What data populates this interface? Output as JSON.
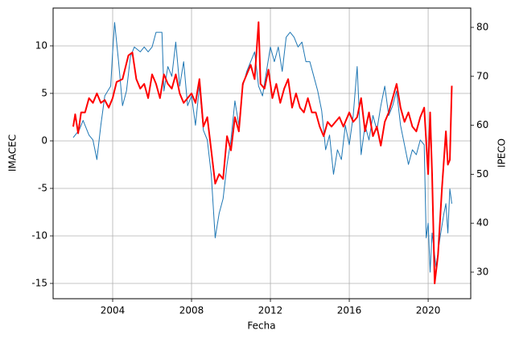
{
  "chart_data": {
    "type": "line",
    "xlabel": "Fecha",
    "ylabel": "IMACEC",
    "y2label": "IPECO",
    "xlim": [
      2000.98,
      2022.16
    ],
    "xticks": [
      2004,
      2008,
      2012,
      2016,
      2020
    ],
    "ylim": [
      -16.61,
      13.98
    ],
    "yticks": [
      -15,
      -10,
      -5,
      0,
      5,
      10
    ],
    "y2lim": [
      24.57,
      83.95
    ],
    "y2ticks": [
      30,
      40,
      50,
      60,
      70,
      80
    ],
    "grid": true,
    "series": [
      {
        "name": "IMACEC",
        "color": "#ff0000",
        "x": [
          2002.0,
          2002.1,
          2002.25,
          2002.4,
          2002.6,
          2002.8,
          2003.0,
          2003.2,
          2003.4,
          2003.6,
          2003.8,
          2004.0,
          2004.2,
          2004.5,
          2004.8,
          2005.0,
          2005.2,
          2005.4,
          2005.6,
          2005.8,
          2006.0,
          2006.2,
          2006.4,
          2006.6,
          2006.8,
          2007.0,
          2007.2,
          2007.4,
          2007.6,
          2007.8,
          2008.0,
          2008.2,
          2008.4,
          2008.6,
          2008.8,
          2009.0,
          2009.2,
          2009.4,
          2009.6,
          2009.8,
          2010.0,
          2010.2,
          2010.4,
          2010.6,
          2010.8,
          2011.0,
          2011.2,
          2011.4,
          2011.5,
          2011.7,
          2011.9,
          2012.1,
          2012.3,
          2012.5,
          2012.7,
          2012.9,
          2013.1,
          2013.3,
          2013.5,
          2013.7,
          2013.9,
          2014.1,
          2014.3,
          2014.5,
          2014.7,
          2014.9,
          2015.1,
          2015.3,
          2015.5,
          2015.7,
          2016.0,
          2016.2,
          2016.4,
          2016.6,
          2016.8,
          2017.0,
          2017.2,
          2017.4,
          2017.6,
          2017.8,
          2018.0,
          2018.2,
          2018.4,
          2018.6,
          2018.8,
          2019.0,
          2019.2,
          2019.4,
          2019.6,
          2019.8,
          2020.0,
          2020.1,
          2020.2,
          2020.33,
          2020.5,
          2020.7,
          2020.9,
          2021.0,
          2021.1,
          2021.2
        ],
        "values": [
          1.5,
          2.8,
          0.8,
          3,
          3,
          4.5,
          4,
          5,
          4,
          4.3,
          3.5,
          4.5,
          6.2,
          6.5,
          9,
          9.3,
          6.5,
          5.5,
          6,
          4.5,
          7,
          6,
          4.5,
          7,
          6,
          5.5,
          7,
          5,
          4,
          4.5,
          5,
          4,
          6.5,
          1.5,
          2.5,
          -1,
          -4.5,
          -3.5,
          -4,
          0.5,
          -1,
          2.5,
          1,
          6,
          7,
          8,
          6.5,
          12.5,
          6,
          5.5,
          7.5,
          4.5,
          6,
          4,
          5.5,
          6.5,
          3.5,
          5,
          3.5,
          3,
          4.5,
          3,
          3,
          1.5,
          0.5,
          2,
          1.5,
          2,
          2.5,
          1.5,
          3,
          2,
          2.5,
          4.5,
          1,
          3,
          0.5,
          1.5,
          -0.5,
          2,
          3,
          4.5,
          6,
          3.5,
          2,
          3,
          1.5,
          1,
          2.5,
          3.5,
          -3.5,
          3,
          -3.5,
          -15,
          -12,
          -5,
          1,
          -2.5,
          -2,
          5.8
        ]
      },
      {
        "name": "IPECO",
        "color": "#1f77b4",
        "axis": "y2",
        "x": [
          2002.0,
          2002.3,
          2002.5,
          2002.8,
          2003.0,
          2003.2,
          2003.4,
          2003.6,
          2003.9,
          2004.0,
          2004.1,
          2004.3,
          2004.5,
          2004.7,
          2004.9,
          2005.1,
          2005.4,
          2005.6,
          2005.8,
          2006.0,
          2006.2,
          2006.5,
          2006.6,
          2006.8,
          2007.0,
          2007.2,
          2007.4,
          2007.6,
          2007.8,
          2008.0,
          2008.2,
          2008.4,
          2008.6,
          2008.8,
          2009.0,
          2009.2,
          2009.4,
          2009.6,
          2009.8,
          2010.0,
          2010.2,
          2010.4,
          2010.6,
          2010.8,
          2011.0,
          2011.2,
          2011.4,
          2011.6,
          2011.8,
          2012.0,
          2012.2,
          2012.4,
          2012.6,
          2012.8,
          2013.0,
          2013.2,
          2013.4,
          2013.6,
          2013.8,
          2014.0,
          2014.2,
          2014.4,
          2014.6,
          2014.8,
          2015.0,
          2015.2,
          2015.4,
          2015.6,
          2015.8,
          2016.0,
          2016.2,
          2016.4,
          2016.6,
          2016.8,
          2017.0,
          2017.2,
          2017.4,
          2017.6,
          2017.8,
          2018.0,
          2018.2,
          2018.4,
          2018.6,
          2018.8,
          2019.0,
          2019.2,
          2019.4,
          2019.6,
          2019.8,
          2019.9,
          2020.0,
          2020.1,
          2020.2,
          2020.4,
          2020.6,
          2020.8,
          2020.9,
          2021.0,
          2021.1,
          2021.2
        ],
        "values": [
          57.5,
          59,
          61,
          58,
          57,
          53,
          60,
          66,
          68,
          75,
          81,
          73,
          64,
          67,
          74,
          76,
          75,
          76,
          75,
          76,
          79,
          79,
          67,
          72,
          70,
          77,
          68,
          73,
          64,
          66,
          60,
          68,
          59,
          57,
          50,
          37,
          42,
          45,
          52,
          57,
          65,
          60,
          68,
          71,
          73,
          75,
          68,
          66,
          71,
          76,
          73,
          76,
          71,
          78,
          79,
          78,
          76,
          77,
          73,
          73,
          70,
          67,
          63,
          55,
          58,
          50,
          55,
          53,
          60,
          56,
          62,
          72,
          54,
          60,
          57,
          62,
          59,
          64,
          68,
          62,
          64,
          67,
          60,
          56,
          52,
          55,
          54,
          57,
          56,
          37,
          40,
          30,
          38,
          31,
          37,
          42,
          44,
          38,
          47,
          44
        ]
      }
    ]
  }
}
